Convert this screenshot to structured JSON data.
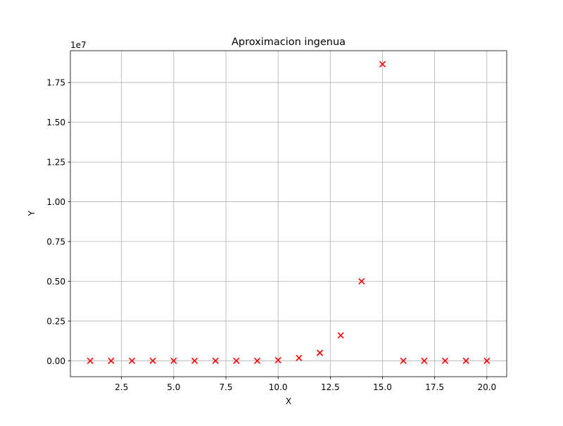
{
  "chart_data": {
    "type": "scatter",
    "title": "Aproximacion ingenua",
    "xlabel": "X",
    "ylabel": "Y",
    "offset_label": "1e7",
    "xlim": [
      0.05,
      20.95
    ],
    "ylim": [
      -0.1,
      1.95
    ],
    "x_ticks": [
      2.5,
      5.0,
      7.5,
      10.0,
      12.5,
      15.0,
      17.5,
      20.0
    ],
    "x_tick_labels": [
      "2.5",
      "5.0",
      "7.5",
      "10.0",
      "12.5",
      "15.0",
      "17.5",
      "20.0"
    ],
    "y_ticks": [
      0.0,
      0.25,
      0.5,
      0.75,
      1.0,
      1.25,
      1.5,
      1.75
    ],
    "y_tick_labels": [
      "0.00",
      "0.25",
      "0.50",
      "0.75",
      "1.00",
      "1.25",
      "1.50",
      "1.75"
    ],
    "grid": true,
    "marker": "x",
    "color": "#ff0000",
    "x": [
      1,
      2,
      3,
      4,
      5,
      6,
      7,
      8,
      9,
      10,
      11,
      12,
      13,
      14,
      15,
      16,
      17,
      18,
      19,
      20
    ],
    "y": [
      0,
      0,
      0,
      0,
      0,
      0,
      0,
      0,
      0,
      0.004,
      0.018,
      0.05,
      0.16,
      0.5,
      1.865,
      0,
      0,
      0,
      0,
      0
    ]
  }
}
